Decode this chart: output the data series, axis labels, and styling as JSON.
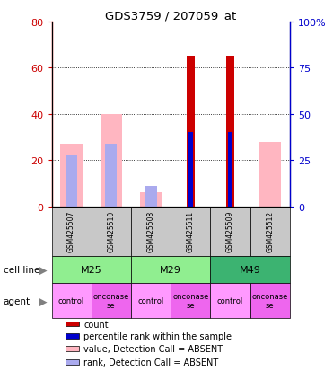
{
  "title": "GDS3759 / 207059_at",
  "samples": [
    "GSM425507",
    "GSM425510",
    "GSM425508",
    "GSM425511",
    "GSM425509",
    "GSM425512"
  ],
  "cell_line_groups": [
    {
      "label": "M25",
      "start": 0,
      "end": 1,
      "color": "#90EE90"
    },
    {
      "label": "M29",
      "start": 2,
      "end": 3,
      "color": "#90EE90"
    },
    {
      "label": "M49",
      "start": 4,
      "end": 5,
      "color": "#3CB371"
    }
  ],
  "agents": [
    "control",
    "onconase\nse",
    "control",
    "onconase\nse",
    "control",
    "onconase\nse"
  ],
  "agent_colors_even": "#FF99FF",
  "agent_colors_odd": "#EE66EE",
  "count_values": [
    null,
    null,
    null,
    65,
    65,
    null
  ],
  "count_color": "#CC0000",
  "rank_values": [
    null,
    null,
    null,
    40,
    40,
    null
  ],
  "rank_color": "#0000CC",
  "absent_value_vals": [
    27,
    40,
    6,
    null,
    null,
    28
  ],
  "absent_value_color": "#FFB6C1",
  "absent_rank_vals": [
    28,
    34,
    11,
    null,
    null,
    null
  ],
  "absent_rank_color": "#AAAAEE",
  "ylim_left": [
    0,
    80
  ],
  "ylim_right": [
    0,
    100
  ],
  "yticks_left": [
    0,
    20,
    40,
    60,
    80
  ],
  "yticks_right": [
    0,
    25,
    50,
    75,
    100
  ],
  "ytick_labels_right": [
    "0",
    "25",
    "50",
    "75",
    "100%"
  ],
  "left_axis_color": "#CC0000",
  "right_axis_color": "#0000CC",
  "legend_items": [
    {
      "color": "#CC0000",
      "label": "count"
    },
    {
      "color": "#0000CC",
      "label": "percentile rank within the sample"
    },
    {
      "color": "#FFB6C1",
      "label": "value, Detection Call = ABSENT"
    },
    {
      "color": "#AAAAEE",
      "label": "rank, Detection Call = ABSENT"
    }
  ]
}
